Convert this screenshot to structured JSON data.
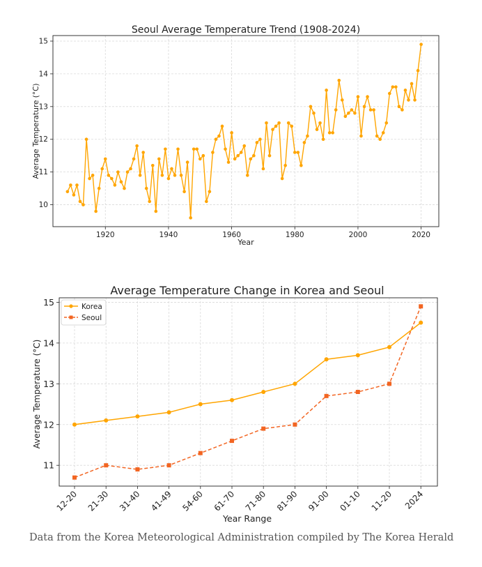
{
  "chart_data": [
    {
      "type": "line",
      "title": "Seoul Average Temperature Trend (1908-2024)",
      "xlabel": "Year",
      "ylabel": "Average Temperature (°C)",
      "xlim": [
        1903.4,
        2025.6
      ],
      "ylim": [
        9.33,
        15.17
      ],
      "xticks": [
        1920,
        1940,
        1960,
        1980,
        2000,
        2020
      ],
      "yticks": [
        10,
        11,
        12,
        13,
        14,
        15
      ],
      "grid": true,
      "color": "#FFA500",
      "series": [
        {
          "x": [
            1908,
            1909,
            1910,
            1911,
            1912,
            1913,
            1914,
            1915,
            1916,
            1917,
            1918,
            1919,
            1920,
            1921,
            1922,
            1923,
            1924,
            1925,
            1926,
            1927,
            1928,
            1929,
            1930,
            1931,
            1932,
            1933,
            1934,
            1935,
            1936,
            1937,
            1938,
            1939,
            1940,
            1941,
            1942,
            1943,
            1944,
            1945,
            1946,
            1947,
            1948,
            1949,
            1950,
            1951,
            1952,
            1953,
            1954,
            1955,
            1956,
            1957,
            1958,
            1959,
            1960,
            1961,
            1962,
            1963,
            1964,
            1965,
            1966,
            1967,
            1968,
            1969,
            1970,
            1971,
            1972,
            1973,
            1974,
            1975,
            1976,
            1977,
            1978,
            1979,
            1980,
            1981,
            1982,
            1983,
            1984,
            1985,
            1986,
            1987,
            1988,
            1989,
            1990,
            1991,
            1992,
            1993,
            1994,
            1995,
            1996,
            1997,
            1998,
            1999,
            2000,
            2001,
            2002,
            2003,
            2004,
            2005,
            2006,
            2007,
            2008,
            2009,
            2010,
            2011,
            2012,
            2013,
            2014,
            2015,
            2016,
            2017,
            2018,
            2019,
            2020
          ],
          "values": [
            10.4,
            10.6,
            10.3,
            10.6,
            10.1,
            10.0,
            12.0,
            10.8,
            10.9,
            9.8,
            10.5,
            11.1,
            11.4,
            10.9,
            10.8,
            10.6,
            11.0,
            10.7,
            10.5,
            11.0,
            11.1,
            11.4,
            11.8,
            10.9,
            11.6,
            10.5,
            10.1,
            11.2,
            9.8,
            11.4,
            10.9,
            11.7,
            10.8,
            11.1,
            10.9,
            11.7,
            10.9,
            10.4,
            11.3,
            9.6,
            11.7,
            11.7,
            11.4,
            11.5,
            10.1,
            10.4,
            11.6,
            12.0,
            12.1,
            12.4,
            11.7,
            11.3,
            12.2,
            11.4,
            11.5,
            11.6,
            11.8,
            10.9,
            11.4,
            11.5,
            11.9,
            12.0,
            11.1,
            12.5,
            11.5,
            12.3,
            12.4,
            12.5,
            10.8,
            11.2,
            12.5,
            12.4,
            11.6,
            11.6,
            11.2,
            11.9,
            12.1,
            13.0,
            12.8,
            12.3,
            12.5,
            12.0,
            13.5,
            12.2,
            12.2,
            12.9,
            13.8,
            13.2,
            12.7,
            12.8,
            12.9,
            12.8,
            13.3,
            12.1,
            13.0,
            13.3,
            12.9,
            12.9,
            12.1,
            12.0,
            12.2,
            12.5,
            13.4,
            13.6,
            13.6,
            13.0,
            12.9,
            13.5,
            13.2,
            13.7,
            13.2,
            14.1,
            14.9
          ]
        }
      ]
    },
    {
      "type": "line",
      "title": "Average Temperature Change in Korea and Seoul",
      "xlabel": "Year Range",
      "ylabel": "Average Temperature (°C)",
      "categories": [
        "12-20",
        "21-30",
        "31-40",
        "41-49",
        "54-60",
        "61-70",
        "71-80",
        "81-90",
        "91-00",
        "01-10",
        "11-20",
        "2024"
      ],
      "ylim": [
        10.49,
        15.11
      ],
      "yticks": [
        11,
        12,
        13,
        14,
        15
      ],
      "grid": true,
      "legend": "top-left",
      "series": [
        {
          "name": "Korea",
          "values": [
            12.0,
            12.1,
            12.2,
            12.3,
            12.5,
            12.6,
            12.8,
            13.0,
            13.6,
            13.7,
            13.9,
            14.5
          ],
          "color": "#FFA500",
          "marker": "circle",
          "line": "solid"
        },
        {
          "name": "Seoul",
          "values": [
            10.7,
            11.0,
            10.9,
            11.0,
            11.3,
            11.6,
            11.9,
            12.0,
            12.7,
            12.8,
            13.0,
            14.9
          ],
          "color": "#F26522",
          "marker": "square",
          "line": "dashed"
        }
      ]
    }
  ],
  "source_note": "Data from the Korea Meteorological Administration compiled by The Korea Herald"
}
